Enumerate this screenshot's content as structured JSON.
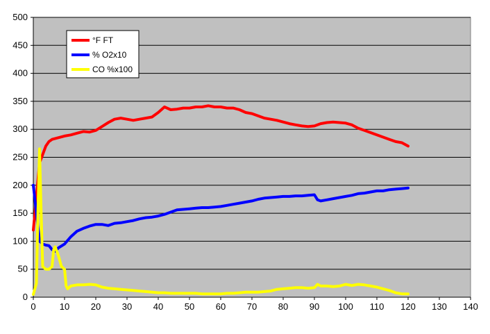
{
  "chart_data": {
    "type": "line",
    "title": "",
    "xlabel": "",
    "ylabel": "",
    "xlim": [
      0,
      140
    ],
    "ylim": [
      0,
      500
    ],
    "x_ticks": [
      "0",
      "10",
      "20",
      "30",
      "40",
      "50",
      "60",
      "70",
      "80",
      "90",
      "100",
      "110",
      "120",
      "130",
      "140"
    ],
    "y_ticks": [
      "0",
      "50",
      "100",
      "150",
      "200",
      "250",
      "300",
      "350",
      "400",
      "450",
      "500"
    ],
    "grid": "horizontal",
    "plot_background": "#C0C0C0",
    "legend_position": "top-left",
    "series": [
      {
        "name": "°F FT",
        "color": "#FF0000",
        "points": [
          [
            0,
            120
          ],
          [
            1,
            180
          ],
          [
            2,
            240
          ],
          [
            3,
            255
          ],
          [
            4,
            270
          ],
          [
            5,
            278
          ],
          [
            6,
            282
          ],
          [
            8,
            285
          ],
          [
            10,
            288
          ],
          [
            12,
            290
          ],
          [
            14,
            293
          ],
          [
            16,
            296
          ],
          [
            18,
            295
          ],
          [
            20,
            298
          ],
          [
            22,
            305
          ],
          [
            24,
            312
          ],
          [
            26,
            318
          ],
          [
            28,
            320
          ],
          [
            30,
            318
          ],
          [
            32,
            316
          ],
          [
            34,
            318
          ],
          [
            36,
            320
          ],
          [
            38,
            322
          ],
          [
            40,
            330
          ],
          [
            42,
            340
          ],
          [
            44,
            335
          ],
          [
            46,
            336
          ],
          [
            48,
            338
          ],
          [
            50,
            338
          ],
          [
            52,
            340
          ],
          [
            54,
            340
          ],
          [
            56,
            342
          ],
          [
            58,
            340
          ],
          [
            60,
            340
          ],
          [
            62,
            338
          ],
          [
            64,
            338
          ],
          [
            66,
            335
          ],
          [
            68,
            330
          ],
          [
            70,
            328
          ],
          [
            72,
            324
          ],
          [
            74,
            320
          ],
          [
            76,
            318
          ],
          [
            78,
            316
          ],
          [
            80,
            313
          ],
          [
            82,
            310
          ],
          [
            84,
            308
          ],
          [
            86,
            306
          ],
          [
            88,
            305
          ],
          [
            90,
            306
          ],
          [
            92,
            310
          ],
          [
            94,
            312
          ],
          [
            96,
            313
          ],
          [
            98,
            312
          ],
          [
            100,
            311
          ],
          [
            102,
            308
          ],
          [
            104,
            302
          ],
          [
            106,
            298
          ],
          [
            108,
            294
          ],
          [
            110,
            290
          ],
          [
            112,
            286
          ],
          [
            114,
            282
          ],
          [
            116,
            278
          ],
          [
            118,
            276
          ],
          [
            120,
            270
          ]
        ]
      },
      {
        "name": "% O2x10",
        "color": "#0000FF",
        "points": [
          [
            0,
            200
          ],
          [
            1,
            150
          ],
          [
            2,
            100
          ],
          [
            3,
            95
          ],
          [
            4,
            93
          ],
          [
            5,
            92
          ],
          [
            6,
            85
          ],
          [
            7,
            82
          ],
          [
            8,
            88
          ],
          [
            10,
            95
          ],
          [
            12,
            108
          ],
          [
            14,
            118
          ],
          [
            16,
            123
          ],
          [
            18,
            127
          ],
          [
            20,
            130
          ],
          [
            22,
            130
          ],
          [
            24,
            128
          ],
          [
            26,
            132
          ],
          [
            28,
            133
          ],
          [
            30,
            135
          ],
          [
            32,
            137
          ],
          [
            34,
            140
          ],
          [
            36,
            142
          ],
          [
            38,
            143
          ],
          [
            40,
            145
          ],
          [
            42,
            148
          ],
          [
            44,
            152
          ],
          [
            46,
            156
          ],
          [
            48,
            157
          ],
          [
            50,
            158
          ],
          [
            52,
            159
          ],
          [
            54,
            160
          ],
          [
            56,
            160
          ],
          [
            58,
            161
          ],
          [
            60,
            162
          ],
          [
            62,
            164
          ],
          [
            64,
            166
          ],
          [
            66,
            168
          ],
          [
            68,
            170
          ],
          [
            70,
            172
          ],
          [
            72,
            175
          ],
          [
            74,
            177
          ],
          [
            76,
            178
          ],
          [
            78,
            179
          ],
          [
            80,
            180
          ],
          [
            82,
            180
          ],
          [
            84,
            181
          ],
          [
            86,
            181
          ],
          [
            88,
            182
          ],
          [
            90,
            183
          ],
          [
            91,
            174
          ],
          [
            92,
            172
          ],
          [
            94,
            174
          ],
          [
            96,
            176
          ],
          [
            98,
            178
          ],
          [
            100,
            180
          ],
          [
            102,
            182
          ],
          [
            104,
            185
          ],
          [
            106,
            186
          ],
          [
            108,
            188
          ],
          [
            110,
            190
          ],
          [
            112,
            190
          ],
          [
            114,
            192
          ],
          [
            116,
            193
          ],
          [
            118,
            194
          ],
          [
            120,
            195
          ]
        ]
      },
      {
        "name": "CO %x100",
        "color": "#FFFF00",
        "points": [
          [
            0,
            5
          ],
          [
            1,
            25
          ],
          [
            1.5,
            160
          ],
          [
            2,
            265
          ],
          [
            2.5,
            150
          ],
          [
            3,
            55
          ],
          [
            4,
            50
          ],
          [
            5,
            50
          ],
          [
            6,
            55
          ],
          [
            6.5,
            85
          ],
          [
            7,
            90
          ],
          [
            8,
            75
          ],
          [
            9,
            55
          ],
          [
            10,
            50
          ],
          [
            10.5,
            20
          ],
          [
            11,
            15
          ],
          [
            12,
            20
          ],
          [
            14,
            22
          ],
          [
            16,
            22
          ],
          [
            18,
            23
          ],
          [
            20,
            22
          ],
          [
            22,
            18
          ],
          [
            24,
            16
          ],
          [
            26,
            15
          ],
          [
            28,
            14
          ],
          [
            30,
            13
          ],
          [
            32,
            12
          ],
          [
            34,
            11
          ],
          [
            36,
            10
          ],
          [
            38,
            9
          ],
          [
            40,
            8
          ],
          [
            42,
            8
          ],
          [
            44,
            7
          ],
          [
            46,
            7
          ],
          [
            48,
            7
          ],
          [
            50,
            7
          ],
          [
            52,
            7
          ],
          [
            54,
            6
          ],
          [
            56,
            6
          ],
          [
            58,
            6
          ],
          [
            60,
            6
          ],
          [
            62,
            7
          ],
          [
            64,
            7
          ],
          [
            66,
            8
          ],
          [
            68,
            9
          ],
          [
            70,
            9
          ],
          [
            72,
            9
          ],
          [
            74,
            10
          ],
          [
            76,
            11
          ],
          [
            78,
            14
          ],
          [
            80,
            15
          ],
          [
            82,
            16
          ],
          [
            84,
            17
          ],
          [
            86,
            17
          ],
          [
            88,
            16
          ],
          [
            90,
            17
          ],
          [
            91,
            23
          ],
          [
            92,
            20
          ],
          [
            94,
            20
          ],
          [
            96,
            19
          ],
          [
            98,
            20
          ],
          [
            100,
            23
          ],
          [
            102,
            21
          ],
          [
            104,
            23
          ],
          [
            106,
            22
          ],
          [
            108,
            20
          ],
          [
            110,
            18
          ],
          [
            112,
            15
          ],
          [
            114,
            12
          ],
          [
            116,
            8
          ],
          [
            118,
            6
          ],
          [
            120,
            6
          ]
        ]
      }
    ]
  }
}
